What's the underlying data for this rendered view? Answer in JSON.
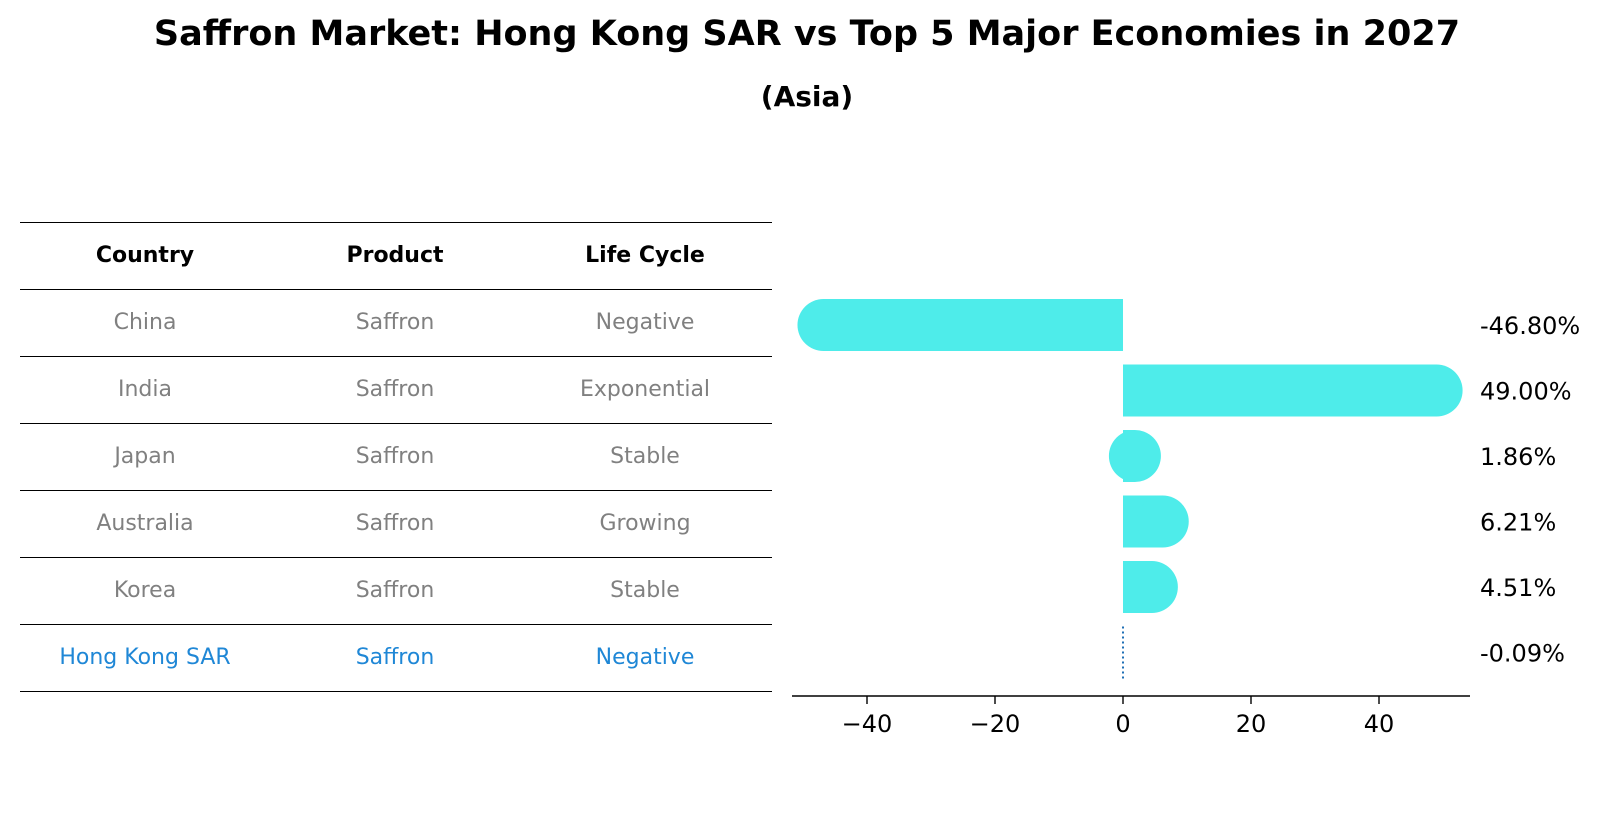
{
  "title": "Saffron Market: Hong Kong SAR vs Top 5 Major Economies in 2027",
  "subtitle": "(Asia)",
  "table": {
    "headers": [
      "Country",
      "Product",
      "Life Cycle"
    ],
    "rows": [
      [
        "China",
        "Saffron",
        "Negative"
      ],
      [
        "India",
        "Saffron",
        "Exponential"
      ],
      [
        "Japan",
        "Saffron",
        "Stable"
      ],
      [
        "Australia",
        "Saffron",
        "Growing"
      ],
      [
        "Korea",
        "Saffron",
        "Stable"
      ],
      [
        "Hong Kong SAR",
        "Saffron",
        "Negative"
      ]
    ]
  },
  "colors": {
    "bar": "#4eecea",
    "highlight": "#1f87d6",
    "muted": "#808080",
    "zero_line": "#1f6fb5"
  },
  "chart_data": {
    "type": "bar",
    "orientation": "horizontal",
    "categories": [
      "China",
      "India",
      "Japan",
      "Australia",
      "Korea",
      "Hong Kong SAR"
    ],
    "values": [
      -46.8,
      49.0,
      1.86,
      6.21,
      4.51,
      -0.09
    ],
    "value_labels": [
      "-46.80%",
      "49.00%",
      "1.86%",
      "6.21%",
      "4.51%",
      "-0.09%"
    ],
    "xlim": [
      -52,
      54
    ],
    "xticks": [
      -40,
      -20,
      0,
      20,
      40
    ],
    "xtick_labels": [
      "−40",
      "−20",
      "0",
      "20",
      "40"
    ],
    "grid": false
  }
}
